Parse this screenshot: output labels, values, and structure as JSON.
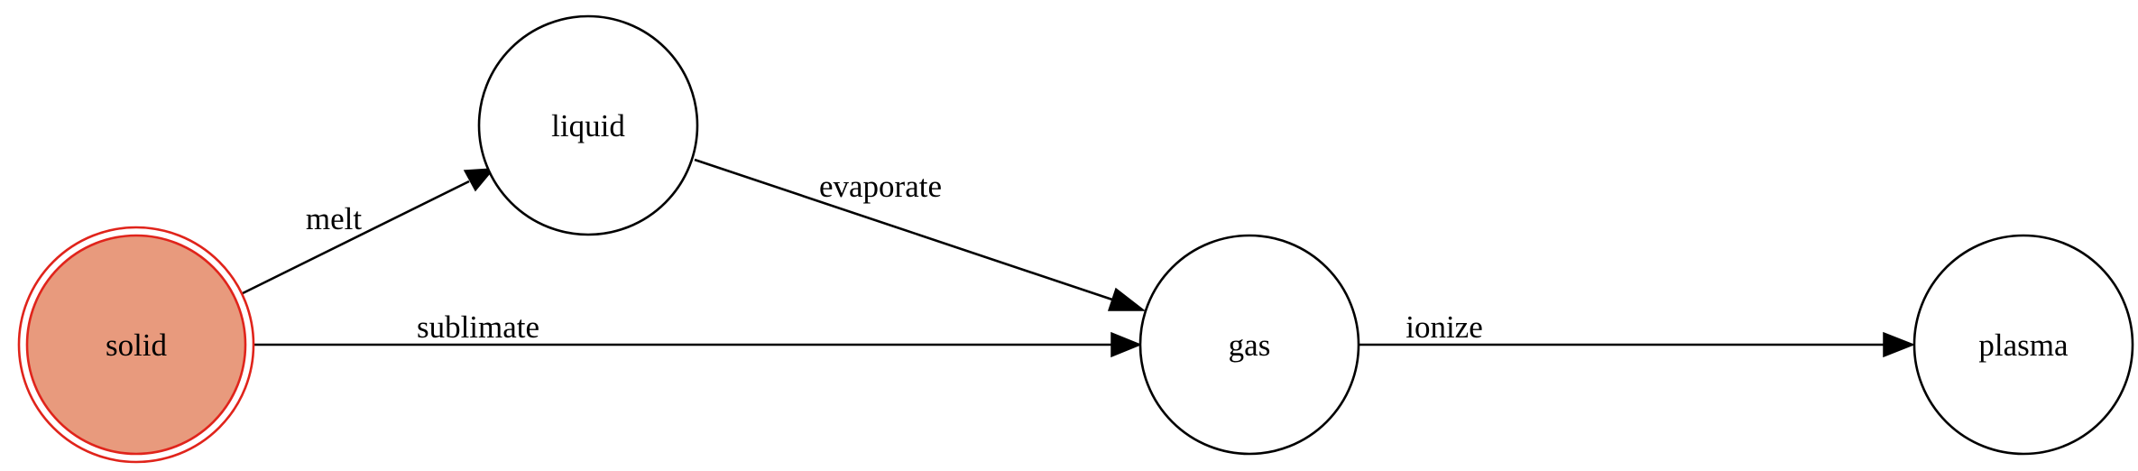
{
  "colors": {
    "start_fill": "#e89a7d",
    "start_border": "#e0241b",
    "node_fill": "#ffffff",
    "node_border": "#000000",
    "edge": "#000000"
  },
  "nodes": [
    {
      "id": "solid",
      "label": "solid",
      "start_state": true
    },
    {
      "id": "liquid",
      "label": "liquid"
    },
    {
      "id": "gas",
      "label": "gas"
    },
    {
      "id": "plasma",
      "label": "plasma"
    }
  ],
  "edges": [
    {
      "from": "solid",
      "to": "liquid",
      "label": "melt"
    },
    {
      "from": "liquid",
      "to": "gas",
      "label": "evaporate"
    },
    {
      "from": "solid",
      "to": "gas",
      "label": "sublimate"
    },
    {
      "from": "gas",
      "to": "plasma",
      "label": "ionize"
    }
  ]
}
